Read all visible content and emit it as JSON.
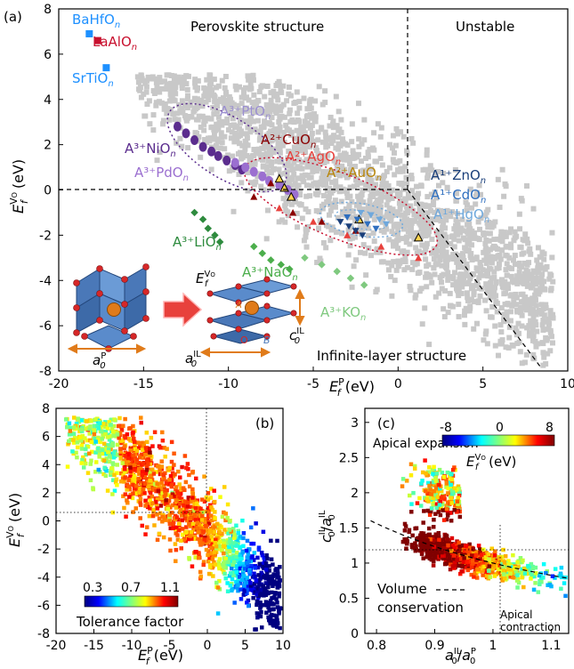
{
  "panels": {
    "a": {
      "label": "(a)",
      "xlabel": "E_f^P (eV)",
      "ylabel": "E_f^VO (eV)",
      "xlim": [
        -20,
        10
      ],
      "ylim": [
        -8,
        8
      ],
      "xticks": [
        "-20",
        "-15",
        "-10",
        "-5",
        "0",
        "5",
        "10"
      ],
      "yticks": [
        "8",
        "6",
        "4",
        "2",
        "0",
        "-2",
        "-4",
        "-6",
        "-8"
      ],
      "regions": {
        "perovskite": "Perovskite structure",
        "unstable": "Unstable",
        "infinite": "Infinite-layer structure"
      },
      "labels": {
        "bahfo": "BaHfO",
        "laalo": "LaAlO",
        "srtio": "SrTiO",
        "a3pto": "A³⁺PtO",
        "a2cuo": "A²⁺CuO",
        "a3nio": "A³⁺NiO",
        "a2ago": "A²⁺AgO",
        "a3pdo": "A³⁺PdO",
        "a2auo": "A²⁺AuO",
        "a1zno": "A¹⁺ZnO",
        "a1cdo": "A¹⁺CdO",
        "a1hgo": "A¹⁺HgO",
        "a3lio": "A³⁺LiO",
        "a3nao": "A³⁺NaO",
        "a3ko": "A³⁺KO",
        "sub_n": "n"
      },
      "inset": {
        "efvo": "E_f^VO",
        "ap": "a_0^P",
        "ail": "a_0^IL",
        "cil": "c_0^IL",
        "A": "A",
        "O": "O",
        "B": "B"
      }
    },
    "b": {
      "label": "(b)",
      "xlabel": "E_f^P (eV)",
      "ylabel": "E_f^VO (eV)",
      "xticks": [
        "-20",
        "-15",
        "-10",
        "-5",
        "0",
        "5",
        "10"
      ],
      "yticks": [
        "8",
        "6",
        "4",
        "2",
        "0",
        "-2",
        "-4",
        "-6",
        "-8"
      ],
      "colorbar_ticks": [
        "0.3",
        "0.7",
        "1.1"
      ],
      "colorbar_label": "Tolerance factor"
    },
    "c": {
      "label": "(c)",
      "xlabel": "a_0^IL/a_0^P",
      "ylabel": "c_0^IL/a_0^IL",
      "xticks": [
        "0.8",
        "0.9",
        "1",
        "1.1"
      ],
      "yticks": [
        "3",
        "2.5",
        "2",
        "1.5",
        "1",
        "0.5",
        "0"
      ],
      "colorbar_ticks": [
        "-8",
        "0",
        "8"
      ],
      "colorbar_label": "E_f^VO (eV)",
      "annotations": {
        "apical_expansion": "Apical expansion",
        "volume": "Volume",
        "conservation": "conservation",
        "apical": "Apical",
        "contraction": "contraction"
      }
    }
  },
  "chart_data": [
    {
      "type": "scatter",
      "panel": "a",
      "xlim": [
        -20,
        10
      ],
      "ylim": [
        -8,
        8
      ],
      "series": [
        {
          "name": "BaHfO",
          "color": "#1e90ff",
          "points": [
            [
              -18.2,
              6.9
            ]
          ]
        },
        {
          "name": "LaAlO",
          "color": "#c8102e",
          "points": [
            [
              -17.7,
              6.6
            ]
          ]
        },
        {
          "name": "SrTiO",
          "color": "#1e90ff",
          "points": [
            [
              -17.2,
              5.4
            ]
          ]
        },
        {
          "name": "A3+NiO",
          "color": "#5b2d8e",
          "points": [
            [
              -13.0,
              2.8
            ],
            [
              -12.5,
              2.5
            ],
            [
              -12.0,
              2.2
            ],
            [
              -11.5,
              1.9
            ],
            [
              -11.0,
              1.7
            ],
            [
              -10.6,
              1.5
            ],
            [
              -10.1,
              1.3
            ],
            [
              -9.6,
              1.1
            ],
            [
              -9.2,
              0.9
            ]
          ]
        },
        {
          "name": "A3+PdO",
          "color": "#9b6fd0",
          "points": [
            [
              -9.6,
              1.2
            ],
            [
              -9.0,
              1.0
            ],
            [
              -8.5,
              0.8
            ],
            [
              -8.0,
              0.6
            ],
            [
              -7.6,
              0.4
            ],
            [
              -7.0,
              0.2
            ],
            [
              -6.5,
              0.0
            ],
            [
              -6.1,
              -0.2
            ]
          ]
        },
        {
          "name": "A3+LiO",
          "color": "#2e8b3e",
          "points": [
            [
              -12.0,
              -1.0
            ],
            [
              -11.5,
              -1.3
            ],
            [
              -11.2,
              -1.7
            ],
            [
              -10.8,
              -2.0
            ],
            [
              -10.5,
              -2.3
            ]
          ]
        },
        {
          "name": "A3+NaO",
          "color": "#4cae4c",
          "points": [
            [
              -8.5,
              -2.5
            ],
            [
              -8.0,
              -2.8
            ],
            [
              -7.5,
              -3.1
            ],
            [
              -6.9,
              -3.3
            ],
            [
              -6.4,
              -3.5
            ]
          ]
        },
        {
          "name": "A3+KO",
          "color": "#7fc97f",
          "points": [
            [
              -5.5,
              -3.0
            ],
            [
              -4.5,
              -3.3
            ],
            [
              -3.6,
              -3.6
            ],
            [
              -2.8,
              -3.9
            ],
            [
              -2.0,
              -4.2
            ]
          ]
        },
        {
          "name": "A2+CuO",
          "color": "#8b0000",
          "points": [
            [
              -8.5,
              -0.3
            ],
            [
              -7.5,
              0.3
            ],
            [
              -6.2,
              -1.0
            ],
            [
              -4.5,
              -1.4
            ],
            [
              -2.5,
              -1.8
            ]
          ]
        },
        {
          "name": "A2+AgO",
          "color": "#e8413c",
          "points": [
            [
              -7.0,
              -0.8
            ],
            [
              -5.0,
              -1.4
            ],
            [
              -3.0,
              -2.0
            ],
            [
              -1.0,
              -2.5
            ],
            [
              1.2,
              -3.0
            ]
          ]
        },
        {
          "name": "A2+AuO",
          "color": "#d4a017",
          "points": [
            [
              -7.0,
              0.5
            ],
            [
              -6.7,
              0.1
            ],
            [
              -6.3,
              -0.3
            ],
            [
              -2.3,
              -1.3
            ],
            [
              1.2,
              -2.1
            ]
          ]
        },
        {
          "name": "A1+ZnO",
          "color": "#1a3f7a",
          "points": [
            [
              -3.4,
              -1.4
            ],
            [
              -2.9,
              -1.6
            ],
            [
              -2.5,
              -1.8
            ],
            [
              -2.1,
              -2.0
            ]
          ]
        },
        {
          "name": "A1+CdO",
          "color": "#2f6fbf",
          "points": [
            [
              -3.0,
              -1.2
            ],
            [
              -2.4,
              -1.3
            ],
            [
              -1.8,
              -1.5
            ],
            [
              -1.3,
              -1.7
            ]
          ]
        },
        {
          "name": "A1+HgO",
          "color": "#6fa8dc",
          "points": [
            [
              -2.2,
              -1.0
            ],
            [
              -1.6,
              -1.1
            ],
            [
              -1.1,
              -1.3
            ],
            [
              -0.7,
              -1.5
            ]
          ]
        }
      ]
    },
    {
      "type": "scatter",
      "panel": "b",
      "xlim": [
        -20,
        10
      ],
      "ylim": [
        -8,
        8
      ],
      "color_by": "Tolerance factor",
      "colorbar_range": [
        0.3,
        1.1
      ]
    },
    {
      "type": "scatter",
      "panel": "c",
      "xlim": [
        0.78,
        1.13
      ],
      "ylim": [
        0,
        3.2
      ],
      "color_by": "E_f^VO (eV)",
      "colorbar_range": [
        -8,
        8
      ],
      "reference_curve": "volume conservation"
    }
  ],
  "colors": {
    "bg_cloud": "#c8c8c8",
    "perovskite_ellipse": "#5b2d8e",
    "cu_ellipse": "#c8102e",
    "zn_ellipse": "#6fa8dc",
    "arrow": "#e8413c",
    "orange": "#e07b1a"
  }
}
